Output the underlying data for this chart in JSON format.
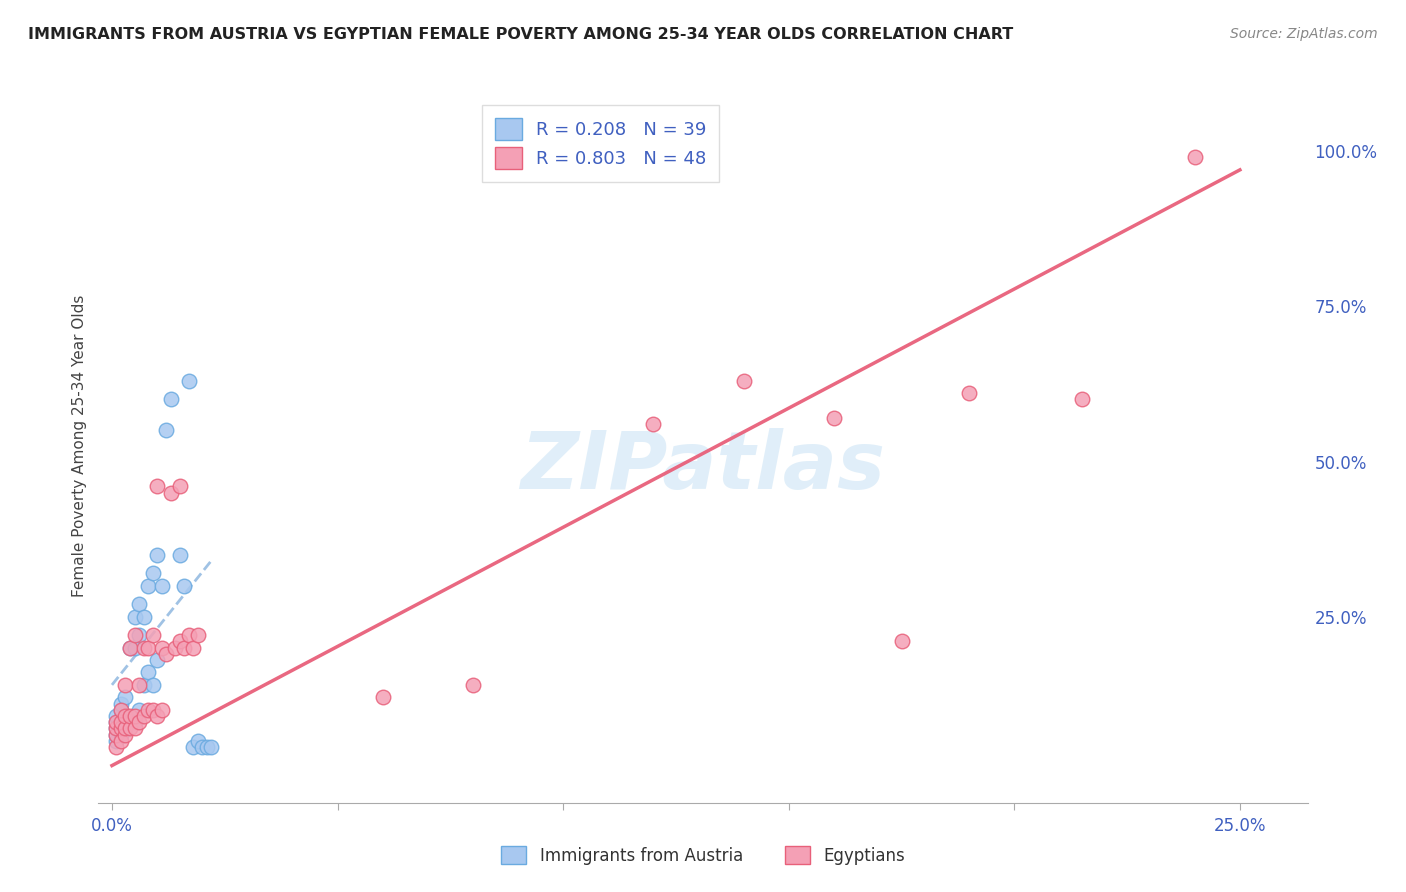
{
  "title": "IMMIGRANTS FROM AUSTRIA VS EGYPTIAN FEMALE POVERTY AMONG 25-34 YEAR OLDS CORRELATION CHART",
  "source": "Source: ZipAtlas.com",
  "ylabel": "Female Poverty Among 25-34 Year Olds",
  "x_ticks": [
    0.0,
    0.05,
    0.1,
    0.15,
    0.2,
    0.25
  ],
  "x_tick_labels": [
    "0.0%",
    "",
    "",
    "",
    "",
    "25.0%"
  ],
  "y_ticks_right": [
    0.0,
    0.25,
    0.5,
    0.75,
    1.0
  ],
  "y_tick_labels_right": [
    "",
    "25.0%",
    "50.0%",
    "75.0%",
    "100.0%"
  ],
  "xlim": [
    -0.003,
    0.265
  ],
  "ylim": [
    -0.05,
    1.1
  ],
  "blue_R": 0.208,
  "blue_N": 39,
  "pink_R": 0.803,
  "pink_N": 48,
  "blue_color": "#a8c8f0",
  "pink_color": "#f4a0b5",
  "blue_edge_color": "#6aaae0",
  "pink_edge_color": "#e8607a",
  "blue_line_color": "#90b8e0",
  "pink_line_color": "#e8607a",
  "watermark": "ZIPatlas",
  "legend_label_blue": "Immigrants from Austria",
  "legend_label_pink": "Egyptians",
  "blue_scatter_x": [
    0.001,
    0.001,
    0.001,
    0.001,
    0.001,
    0.002,
    0.002,
    0.002,
    0.002,
    0.003,
    0.003,
    0.003,
    0.004,
    0.004,
    0.005,
    0.005,
    0.005,
    0.006,
    0.006,
    0.006,
    0.007,
    0.007,
    0.008,
    0.008,
    0.009,
    0.009,
    0.01,
    0.01,
    0.011,
    0.012,
    0.013,
    0.015,
    0.016,
    0.017,
    0.018,
    0.019,
    0.02,
    0.021,
    0.022
  ],
  "blue_scatter_y": [
    0.05,
    0.06,
    0.07,
    0.08,
    0.09,
    0.06,
    0.07,
    0.1,
    0.11,
    0.07,
    0.08,
    0.12,
    0.08,
    0.2,
    0.08,
    0.2,
    0.25,
    0.1,
    0.22,
    0.27,
    0.14,
    0.25,
    0.16,
    0.3,
    0.14,
    0.32,
    0.18,
    0.35,
    0.3,
    0.55,
    0.6,
    0.35,
    0.3,
    0.63,
    0.04,
    0.05,
    0.04,
    0.04,
    0.04
  ],
  "pink_scatter_x": [
    0.001,
    0.001,
    0.001,
    0.001,
    0.002,
    0.002,
    0.002,
    0.002,
    0.003,
    0.003,
    0.003,
    0.003,
    0.004,
    0.004,
    0.004,
    0.005,
    0.005,
    0.005,
    0.006,
    0.006,
    0.007,
    0.007,
    0.008,
    0.008,
    0.009,
    0.009,
    0.01,
    0.01,
    0.011,
    0.011,
    0.012,
    0.013,
    0.014,
    0.015,
    0.015,
    0.016,
    0.017,
    0.018,
    0.019,
    0.06,
    0.08,
    0.12,
    0.14,
    0.16,
    0.175,
    0.19,
    0.215,
    0.24
  ],
  "pink_scatter_y": [
    0.04,
    0.06,
    0.07,
    0.08,
    0.05,
    0.07,
    0.08,
    0.1,
    0.06,
    0.07,
    0.09,
    0.14,
    0.07,
    0.09,
    0.2,
    0.07,
    0.09,
    0.22,
    0.08,
    0.14,
    0.09,
    0.2,
    0.1,
    0.2,
    0.1,
    0.22,
    0.09,
    0.46,
    0.1,
    0.2,
    0.19,
    0.45,
    0.2,
    0.21,
    0.46,
    0.2,
    0.22,
    0.2,
    0.22,
    0.12,
    0.14,
    0.56,
    0.63,
    0.57,
    0.21,
    0.61,
    0.6,
    0.99
  ],
  "blue_regline_x": [
    0.0,
    0.022
  ],
  "blue_regline_y": [
    0.14,
    0.34
  ],
  "pink_regline_x": [
    0.0,
    0.25
  ],
  "pink_regline_y": [
    0.01,
    0.97
  ]
}
